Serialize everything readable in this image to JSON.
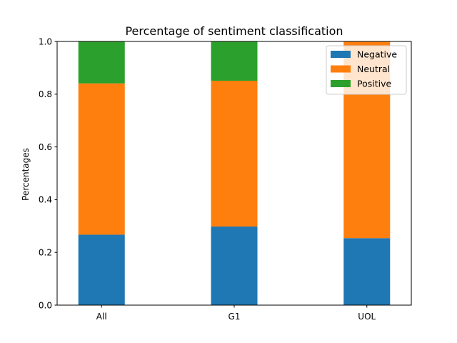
{
  "chart_data": {
    "type": "bar",
    "stacked": true,
    "title": "Percentage of sentiment classification",
    "xlabel": "",
    "ylabel": "Percentages",
    "categories": [
      "All",
      "G1",
      "UOL"
    ],
    "series": [
      {
        "name": "Negative",
        "color": "#1f77b4",
        "values": [
          0.267,
          0.298,
          0.254
        ]
      },
      {
        "name": "Neutral",
        "color": "#ff7f0e",
        "values": [
          0.574,
          0.553,
          0.746
        ]
      },
      {
        "name": "Positive",
        "color": "#2ca02c",
        "values": [
          0.159,
          0.149,
          0.0
        ]
      }
    ],
    "ylim": [
      0,
      1.0
    ],
    "yticks": [
      "0.0",
      "0.2",
      "0.4",
      "0.6",
      "0.8",
      "1.0"
    ],
    "grid": false,
    "legend_position": "top-right"
  }
}
